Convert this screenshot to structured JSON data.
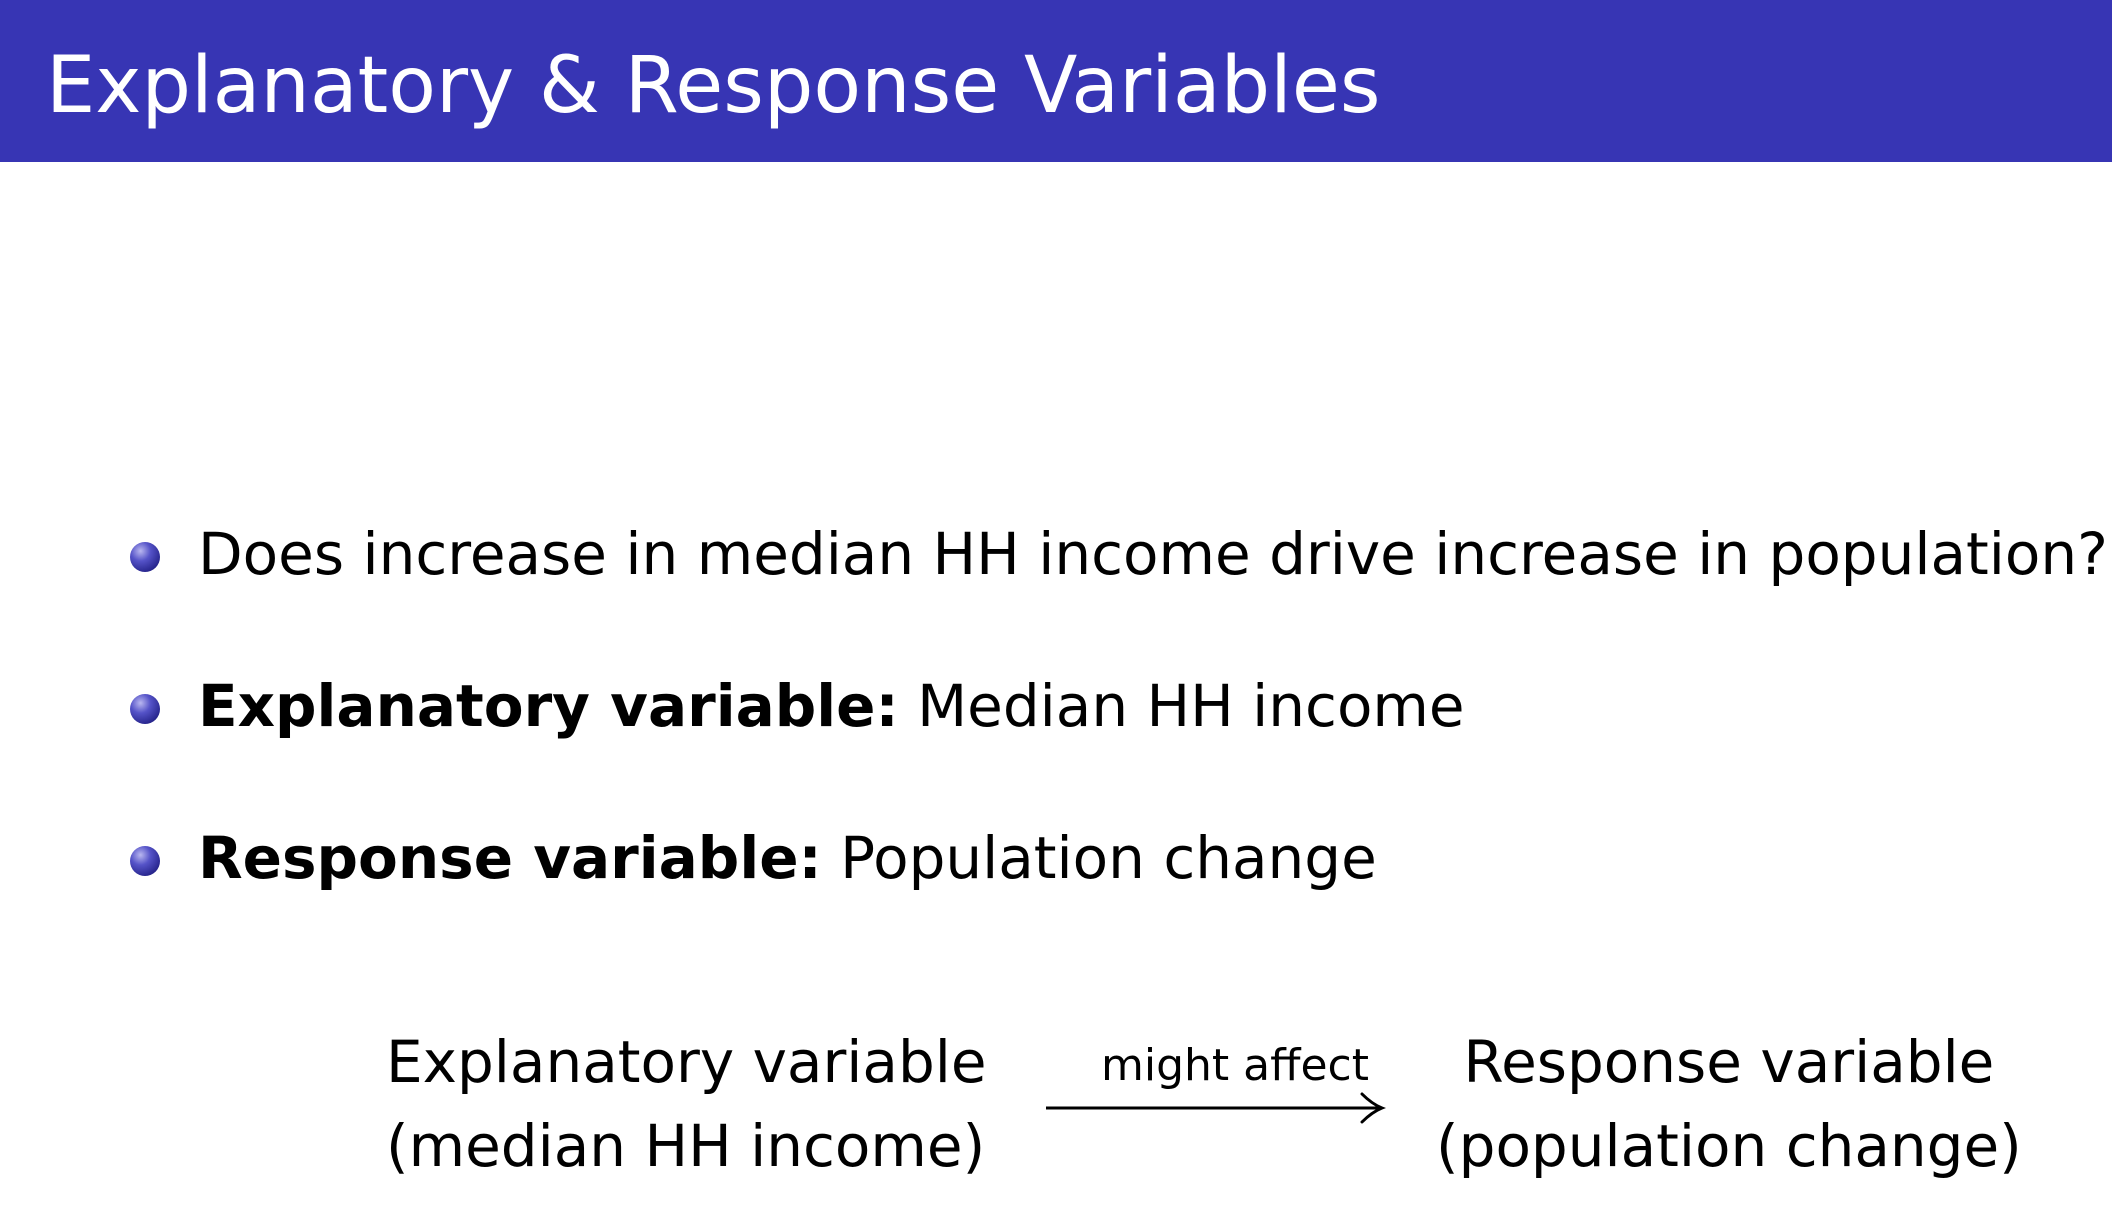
{
  "title": "Explanatory & Response Variables",
  "bullets": [
    {
      "label": "",
      "text": "Does increase in median HH income drive increase in population?"
    },
    {
      "label": "Explanatory variable:",
      "text": "Median HH income"
    },
    {
      "label": "Response variable:",
      "text": "Population change"
    }
  ],
  "diagram": {
    "left_line1": "Explanatory variable",
    "left_line2": "(median HH income)",
    "arrow_label": "might affect",
    "right_line1": "Response variable",
    "right_line2": "(population change)"
  },
  "colors": {
    "title_bar": "#3735b4",
    "bullet": "#3735b4"
  }
}
